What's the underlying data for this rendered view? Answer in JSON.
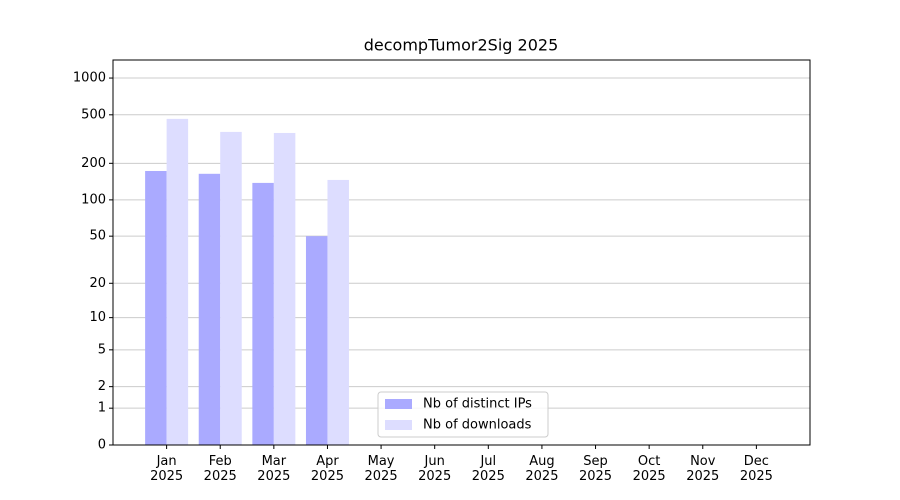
{
  "chart_data": {
    "type": "bar",
    "title": "decompTumor2Sig 2025",
    "categories": [
      "Jan 2025",
      "Feb 2025",
      "Mar 2025",
      "Apr 2025",
      "May 2025",
      "Jun 2025",
      "Jul 2025",
      "Aug 2025",
      "Sep 2025",
      "Oct 2025",
      "Nov 2025",
      "Dec 2025"
    ],
    "series": [
      {
        "name": "Nb of distinct IPs",
        "color": "#aaaaff",
        "values": [
          173,
          164,
          138,
          50,
          null,
          null,
          null,
          null,
          null,
          null,
          null,
          null
        ]
      },
      {
        "name": "Nb of downloads",
        "color": "#ddddff",
        "values": [
          463,
          362,
          355,
          146,
          null,
          null,
          null,
          null,
          null,
          null,
          null,
          null
        ]
      }
    ],
    "yscale": "log1p",
    "ylim": [
      0,
      1405
    ],
    "yticks": [
      0,
      1,
      2,
      5,
      10,
      20,
      50,
      100,
      200,
      500,
      1000
    ],
    "grid": true,
    "legend": "lower center"
  }
}
